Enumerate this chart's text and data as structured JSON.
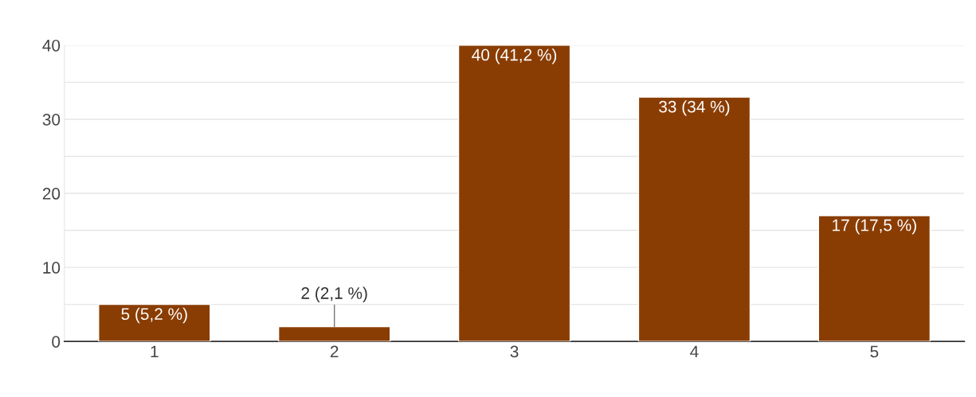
{
  "chart_data": {
    "type": "bar",
    "categories": [
      "1",
      "2",
      "3",
      "4",
      "5"
    ],
    "values": [
      5,
      2,
      40,
      33,
      17
    ],
    "value_labels": [
      "5 (5,2 %)",
      "2 (2,1 %)",
      "40 (41,2 %)",
      "33 (34 %)",
      "17 (17,5 %)"
    ],
    "color": "#8a3d03",
    "ylim": [
      0,
      40
    ],
    "yticks": [
      0,
      {
        "value": 5,
        "label": null
      },
      10,
      {
        "value": 15,
        "label": null
      },
      20,
      {
        "value": 25,
        "label": null
      },
      30,
      {
        "value": 35,
        "label": null
      },
      40
    ],
    "grid": "y"
  }
}
